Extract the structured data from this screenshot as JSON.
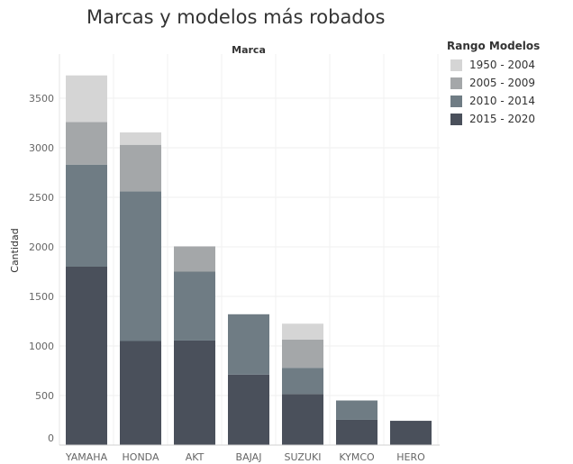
{
  "chart_data": {
    "type": "bar",
    "title": "Marcas y modelos más robados",
    "column_header": "Marca",
    "ylabel": "Cantidad",
    "ylim": [
      0,
      3800
    ],
    "yticks": [
      0,
      500,
      1000,
      1500,
      2000,
      2500,
      3000,
      3500
    ],
    "grid": true,
    "stacked": true,
    "legend_title": "Rango Modelos",
    "legend_position": "top-right",
    "categories": [
      "YAMAHA",
      "HONDA",
      "AKT",
      "BAJAJ",
      "SUZUKI",
      "KYMCO",
      "HERO"
    ],
    "series": [
      {
        "name": "2015 - 2020",
        "color": "#4a505b",
        "values": [
          1800,
          1050,
          1055,
          710,
          515,
          255,
          245
        ]
      },
      {
        "name": "2010 - 2014",
        "color": "#6f7c84",
        "values": [
          1030,
          1510,
          695,
          610,
          265,
          195,
          0
        ]
      },
      {
        "name": "2005 - 2009",
        "color": "#a4a7a9",
        "values": [
          430,
          470,
          255,
          0,
          285,
          0,
          0
        ]
      },
      {
        "name": "1950 - 2004",
        "color": "#d5d5d5",
        "values": [
          470,
          125,
          0,
          0,
          160,
          0,
          0
        ]
      }
    ],
    "legend_order": [
      "1950 - 2004",
      "2005 - 2009",
      "2010 - 2014",
      "2015 - 2020"
    ]
  }
}
